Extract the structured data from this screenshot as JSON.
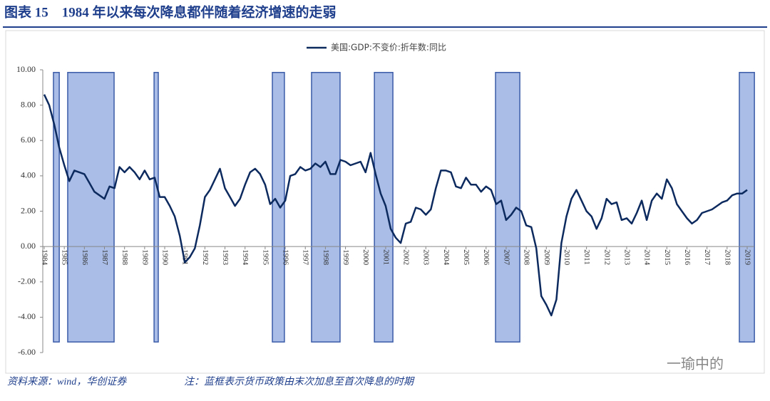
{
  "chart_data": {
    "type": "line",
    "title": "图表 15　1984 年以来每次降息都伴随着经济增速的走弱",
    "source": "资料来源：wind，华创证券",
    "note": "注：蓝框表示货币政策由末次加息至首次降息的时期",
    "watermark": "一瑜中的",
    "categories": [
      "1984",
      null,
      null,
      null,
      "1985",
      null,
      null,
      null,
      "1986",
      null,
      null,
      null,
      "1987",
      null,
      null,
      null,
      "1988",
      null,
      null,
      null,
      "1989",
      null,
      null,
      null,
      "1990",
      null,
      null,
      null,
      "1991",
      null,
      null,
      null,
      "1992",
      null,
      null,
      null,
      "1993",
      null,
      null,
      null,
      "1994",
      null,
      null,
      null,
      "1995",
      null,
      null,
      null,
      "1996",
      null,
      null,
      null,
      "1997",
      null,
      null,
      null,
      "1998",
      null,
      null,
      null,
      "1999",
      null,
      null,
      null,
      "2000",
      null,
      null,
      null,
      "2001",
      null,
      null,
      null,
      "2002",
      null,
      null,
      null,
      "2003",
      null,
      null,
      null,
      "2004",
      null,
      null,
      null,
      "2005",
      null,
      null,
      null,
      "2006",
      null,
      null,
      null,
      "2007",
      null,
      null,
      null,
      "2008",
      null,
      null,
      null,
      "2009",
      null,
      null,
      null,
      "2010",
      null,
      null,
      null,
      "2011",
      null,
      null,
      null,
      "2012",
      null,
      null,
      null,
      "2013",
      null,
      null,
      null,
      "2014",
      null,
      null,
      null,
      "2015",
      null,
      null,
      null,
      "2016",
      null,
      null,
      null,
      "2017",
      null,
      null,
      null,
      "2018",
      null,
      null,
      null,
      "2019"
    ],
    "series": [
      {
        "name": "美国:GDP:不变价:折年数:同比",
        "color": "#0d2a5f",
        "values": [
          8.6,
          8.0,
          6.9,
          5.6,
          4.6,
          3.7,
          4.3,
          4.2,
          4.1,
          3.6,
          3.1,
          2.9,
          2.7,
          3.4,
          3.3,
          4.5,
          4.2,
          4.5,
          4.2,
          3.8,
          4.3,
          3.8,
          3.9,
          2.8,
          2.8,
          2.3,
          1.7,
          0.6,
          -0.9,
          -0.6,
          -0.1,
          1.2,
          2.8,
          3.2,
          3.8,
          4.4,
          3.3,
          2.8,
          2.3,
          2.7,
          3.5,
          4.2,
          4.4,
          4.1,
          3.5,
          2.4,
          2.7,
          2.2,
          2.6,
          4.0,
          4.1,
          4.5,
          4.3,
          4.4,
          4.7,
          4.5,
          4.8,
          4.1,
          4.1,
          4.9,
          4.8,
          4.6,
          4.7,
          4.8,
          4.2,
          5.3,
          4.1,
          3.0,
          2.3,
          1.0,
          0.5,
          0.2,
          1.3,
          1.4,
          2.2,
          2.1,
          1.8,
          2.1,
          3.3,
          4.3,
          4.3,
          4.2,
          3.4,
          3.3,
          3.9,
          3.5,
          3.5,
          3.1,
          3.4,
          3.2,
          2.4,
          2.6,
          1.5,
          1.8,
          2.2,
          2.0,
          1.2,
          1.1,
          -0.1,
          -2.8,
          -3.3,
          -3.9,
          -3.0,
          0.2,
          1.7,
          2.7,
          3.2,
          2.6,
          2.0,
          1.7,
          1.0,
          1.6,
          2.7,
          2.4,
          2.5,
          1.5,
          1.6,
          1.3,
          1.9,
          2.6,
          1.5,
          2.6,
          3.0,
          2.7,
          3.8,
          3.3,
          2.4,
          2.0,
          1.6,
          1.3,
          1.5,
          1.9,
          2.0,
          2.1,
          2.3,
          2.5,
          2.6,
          2.9,
          3.0,
          3.0,
          3.2
        ]
      }
    ],
    "shaded_periods": [
      [
        1984.46,
        1984.75
      ],
      [
        1985.17,
        1987.48
      ],
      [
        1989.47,
        1989.68
      ],
      [
        1995.36,
        1995.96
      ],
      [
        1997.31,
        1998.73
      ],
      [
        2000.44,
        2001.36
      ],
      [
        2006.47,
        2007.68
      ],
      [
        2018.61,
        2019.36
      ]
    ],
    "shade_color": "#a9bde6",
    "shade_ylim": [
      -5.4,
      9.85
    ],
    "ylim": [
      -6,
      10
    ],
    "yticks": [
      {
        "value": -6,
        "label": "-6.00"
      },
      {
        "value": -4,
        "label": "-4.00"
      },
      {
        "value": -2,
        "label": "-2.00"
      },
      {
        "value": 0,
        "label": "0.00"
      },
      {
        "value": 2,
        "label": "2.00"
      },
      {
        "value": 4,
        "label": "4.00"
      },
      {
        "value": 6,
        "label": "6.00"
      },
      {
        "value": 8,
        "label": "8.00"
      },
      {
        "value": 10,
        "label": "10.00"
      }
    ],
    "legend": "top"
  }
}
